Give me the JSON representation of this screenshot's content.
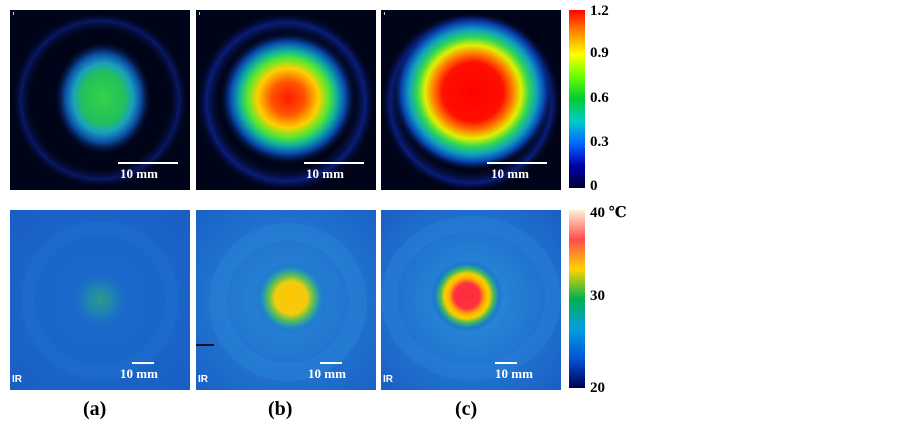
{
  "scale_bar_label": "10 mm",
  "ir_mark": "IR",
  "dose_colorbar": {
    "ticks": [
      "1.2",
      "0.9",
      "0.6",
      "0.3",
      "0"
    ],
    "colors": [
      "#ff0000",
      "#ff8800",
      "#ffff00",
      "#66ff00",
      "#00cc33",
      "#00cccc",
      "#0066ff",
      "#0000aa",
      "#000033"
    ]
  },
  "temp_colorbar": {
    "ticks": [
      "40 ℃",
      "30",
      "20"
    ],
    "colors": [
      "#fff0d8",
      "#ff4c4c",
      "#ffd400",
      "#00b050",
      "#00a0e0",
      "#0055d6",
      "#000050"
    ]
  },
  "captions": [
    "(a)",
    "(b)",
    "(c)"
  ]
}
